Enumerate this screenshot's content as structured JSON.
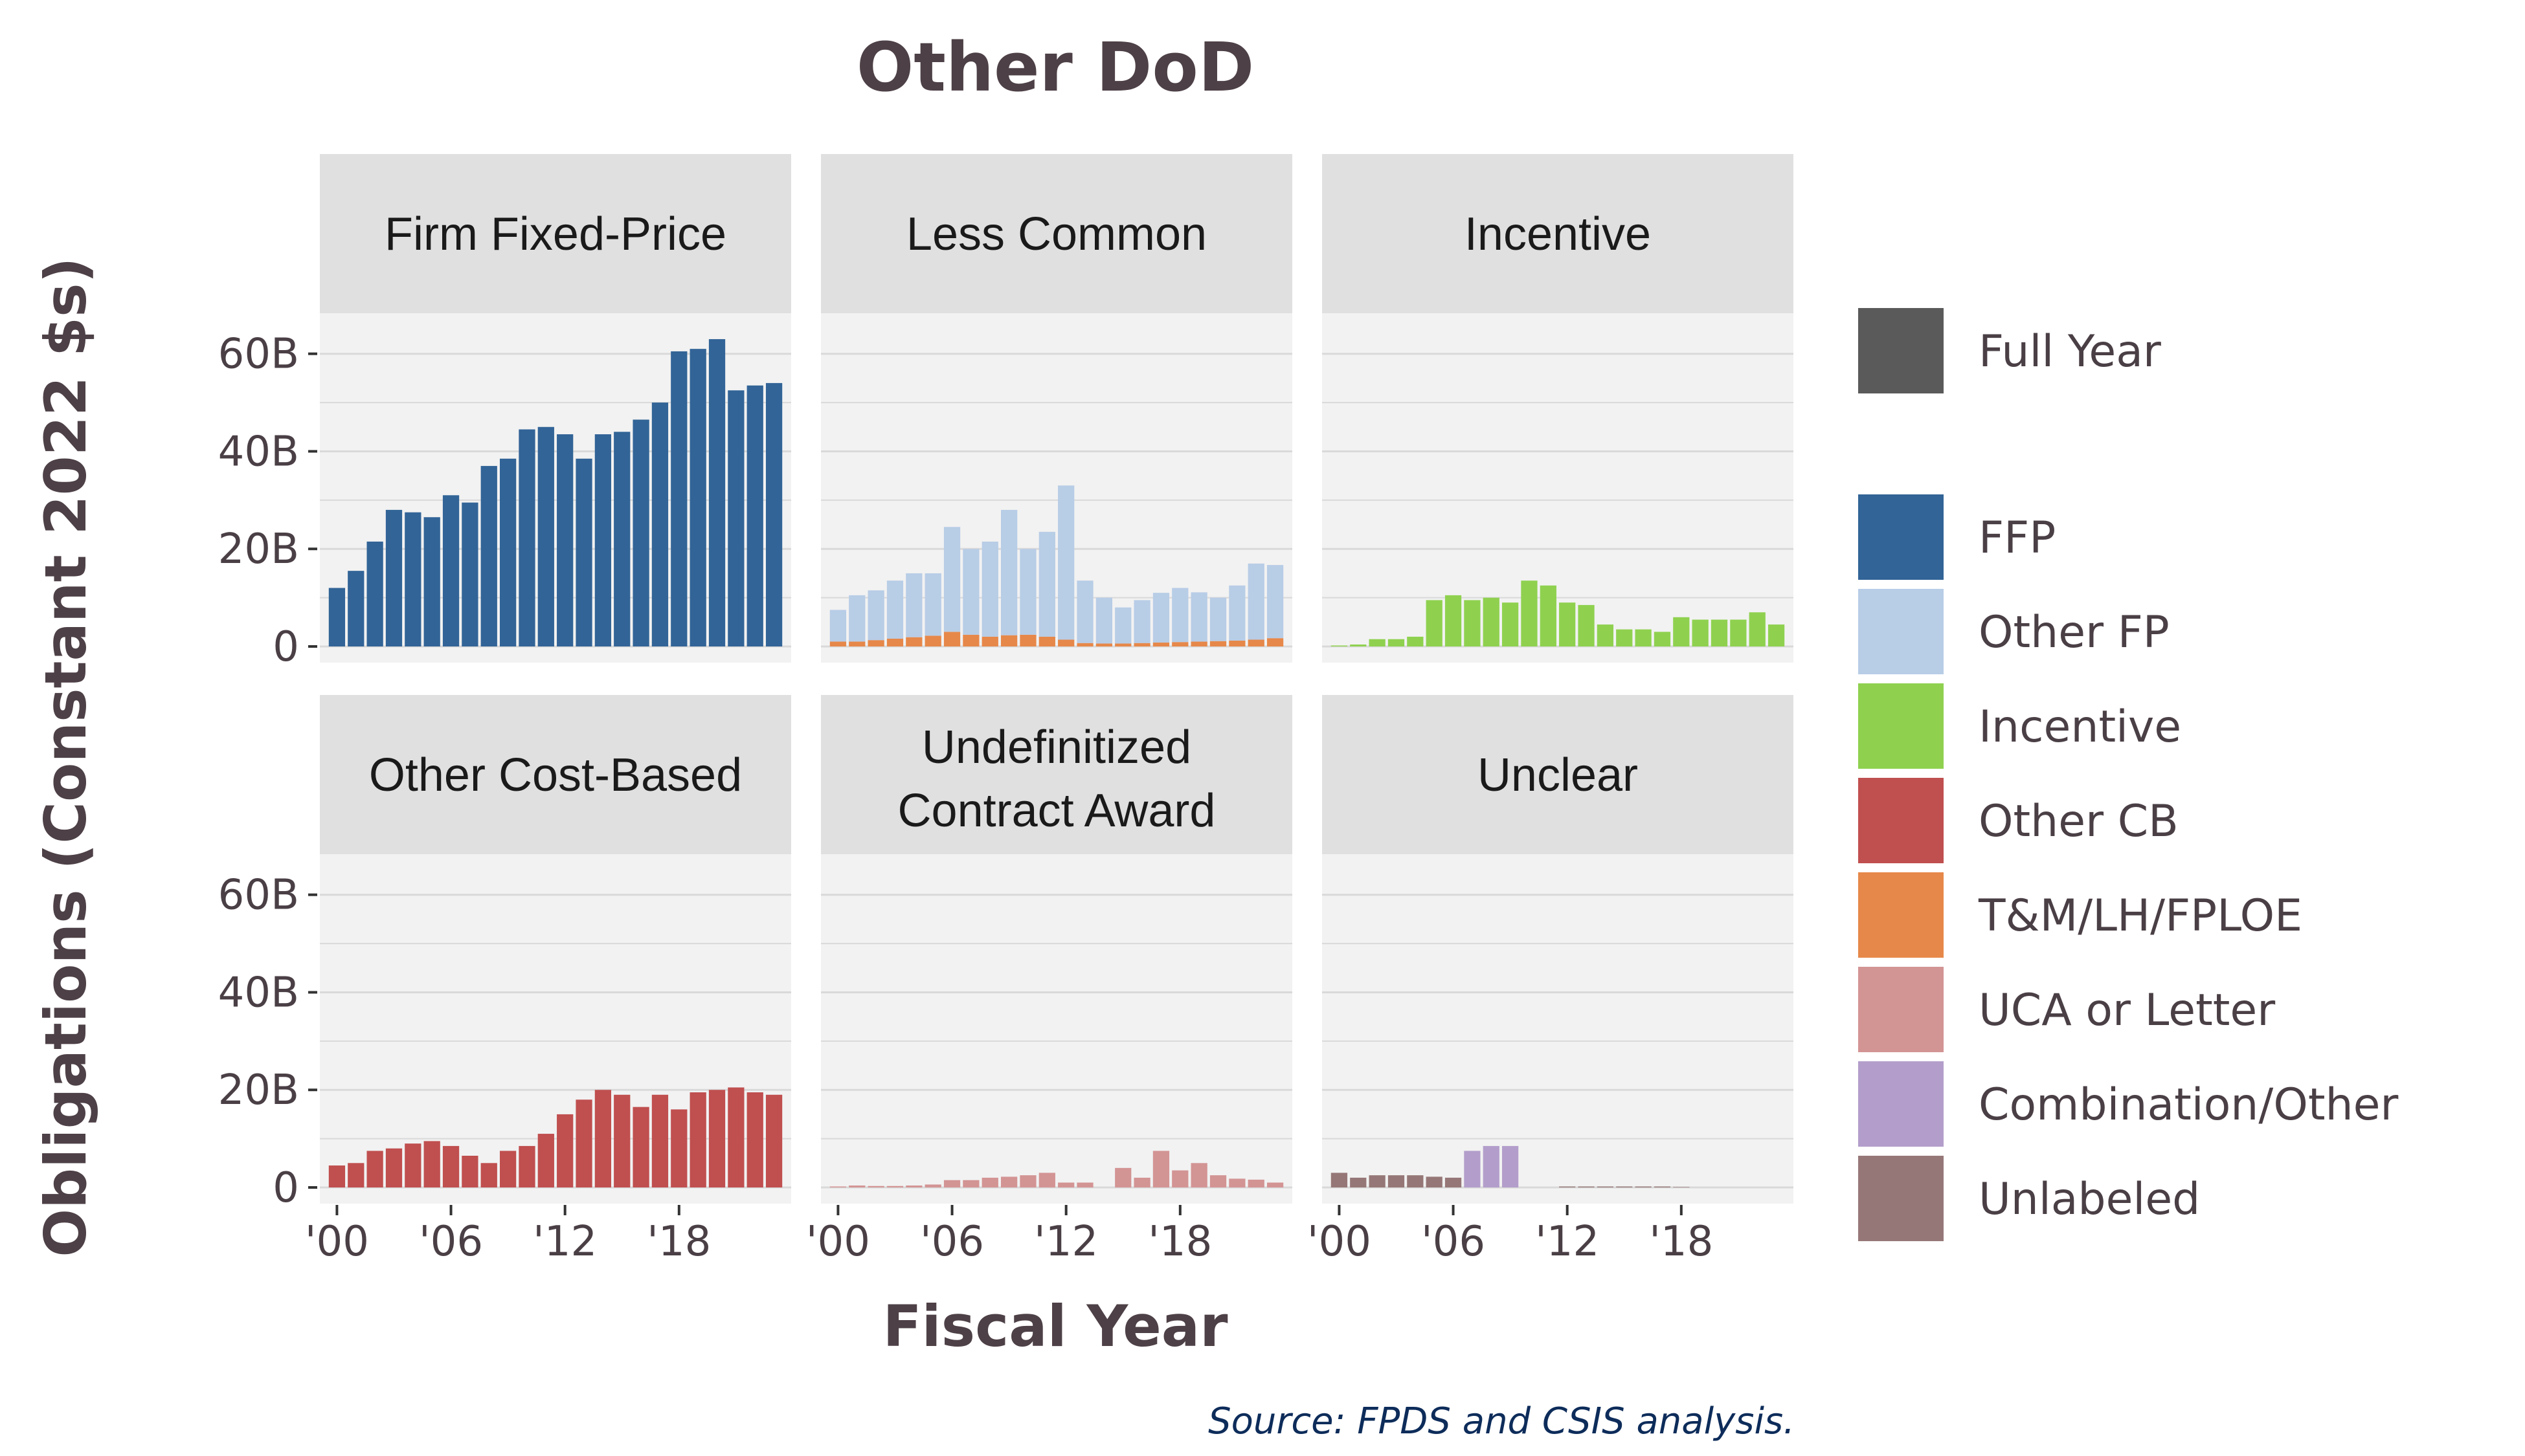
{
  "chart_data": {
    "type": "bar",
    "title": "Other DoD",
    "xlabel": "Fiscal Year",
    "ylabel": "Obligations (Constant 2022 $s)",
    "source": "Source: FPDS and CSIS analysis.",
    "ylim": [
      0,
      65
    ],
    "y_ticks": [
      "0",
      "20B",
      "40B",
      "60B"
    ],
    "y_tick_values": [
      0,
      20,
      40,
      60
    ],
    "x_tick_labels": [
      "'00",
      "'06",
      "'12",
      "'18"
    ],
    "x_tick_years": [
      2000,
      2006,
      2012,
      2018
    ],
    "grid": true,
    "legend_position": "right",
    "x": [
      2000,
      2001,
      2002,
      2003,
      2004,
      2005,
      2006,
      2007,
      2008,
      2009,
      2010,
      2011,
      2012,
      2013,
      2014,
      2015,
      2016,
      2017,
      2018,
      2019,
      2020,
      2021,
      2022,
      2023
    ],
    "colors": {
      "Full Year": "#5a5a5a",
      "FFP": "#326497",
      "Other FP": "#b8cde6",
      "Incentive": "#8fd14f",
      "Other CB": "#c04f4f",
      "T&M/LH/FPLOE": "#e6884a",
      "UCA or Letter": "#d39494",
      "Combination/Other": "#b39ecb",
      "Unlabeled": "#967777",
      "panel_bg": "#f2f2f2",
      "strip_bg": "#e0e0e0",
      "grid": "#d9d9d9"
    },
    "legend": {
      "status": [
        "Full Year"
      ],
      "categories": [
        "FFP",
        "Other FP",
        "Incentive",
        "Other CB",
        "T&M/LH/FPLOE",
        "UCA or Letter",
        "Combination/Other",
        "Unlabeled"
      ]
    },
    "panels": [
      {
        "title": "Firm Fixed-Price",
        "series": [
          {
            "name": "FFP",
            "values": [
              12,
              15.5,
              21.5,
              28,
              27.5,
              26.5,
              31,
              29.5,
              37,
              38.5,
              44.5,
              45,
              43.5,
              38.5,
              43.5,
              44,
              46.5,
              50,
              60.5,
              61,
              63,
              52.5,
              53.5,
              54
            ]
          }
        ]
      },
      {
        "title": "Less Common",
        "series": [
          {
            "name": "T&M/LH/FPLOE",
            "values": [
              1,
              1,
              1.3,
              1.6,
              1.9,
              2.2,
              3,
              2.4,
              2,
              2.3,
              2.4,
              2,
              1.4,
              0.7,
              0.6,
              0.6,
              0.7,
              0.8,
              0.9,
              1,
              1.1,
              1.2,
              1.4,
              1.7
            ]
          },
          {
            "name": "Other FP",
            "values": [
              6.5,
              9.5,
              10.2,
              11.9,
              13.1,
              12.8,
              21.5,
              17.6,
              19.5,
              25.7,
              17.6,
              21.5,
              31.6,
              12.8,
              9.4,
              7.4,
              8.8,
              10.2,
              11.1,
              10.1,
              8.9,
              11.3,
              15.6,
              15
            ]
          }
        ]
      },
      {
        "title": "Incentive",
        "series": [
          {
            "name": "Incentive",
            "values": [
              0.2,
              0.4,
              1.5,
              1.5,
              2,
              9.5,
              10.5,
              9.5,
              10,
              9,
              13.5,
              12.5,
              9,
              8.5,
              4.5,
              3.5,
              3.5,
              3,
              6,
              5.5,
              5.5,
              5.5,
              7,
              4.5
            ]
          }
        ]
      },
      {
        "title": "Other Cost-Based",
        "series": [
          {
            "name": "Other CB",
            "values": [
              4.5,
              5,
              7.5,
              8,
              9,
              9.5,
              8.5,
              6.5,
              5,
              7.5,
              8.5,
              11,
              15,
              18,
              20,
              19,
              16.5,
              19,
              16,
              19.5,
              20,
              20.5,
              19.5,
              19
            ]
          }
        ]
      },
      {
        "title": "Undefinitized Contract Award",
        "series": [
          {
            "name": "UCA or Letter",
            "values": [
              0.2,
              0.4,
              0.3,
              0.3,
              0.4,
              0.6,
              1.5,
              1.5,
              2,
              2.2,
              2.5,
              3,
              1,
              1,
              0,
              4,
              2,
              7.5,
              3.5,
              5,
              2.5,
              1.8,
              1.6,
              1
            ]
          }
        ]
      },
      {
        "title": "Unclear",
        "series": [
          {
            "name": "Unlabeled",
            "values": [
              3,
              2,
              2.5,
              2.5,
              2.5,
              2.2,
              2,
              0,
              0,
              0,
              0,
              0,
              0.2,
              0.2,
              0.2,
              0.2,
              0.2,
              0.2,
              0.1,
              0,
              0,
              0,
              0,
              0
            ]
          },
          {
            "name": "Combination/Other",
            "values": [
              0,
              0,
              0,
              0,
              0,
              0,
              0,
              7.5,
              8.5,
              8.5,
              0,
              0,
              0,
              0,
              0,
              0,
              0,
              0,
              0,
              0,
              0,
              0,
              0,
              0
            ]
          }
        ]
      }
    ]
  }
}
